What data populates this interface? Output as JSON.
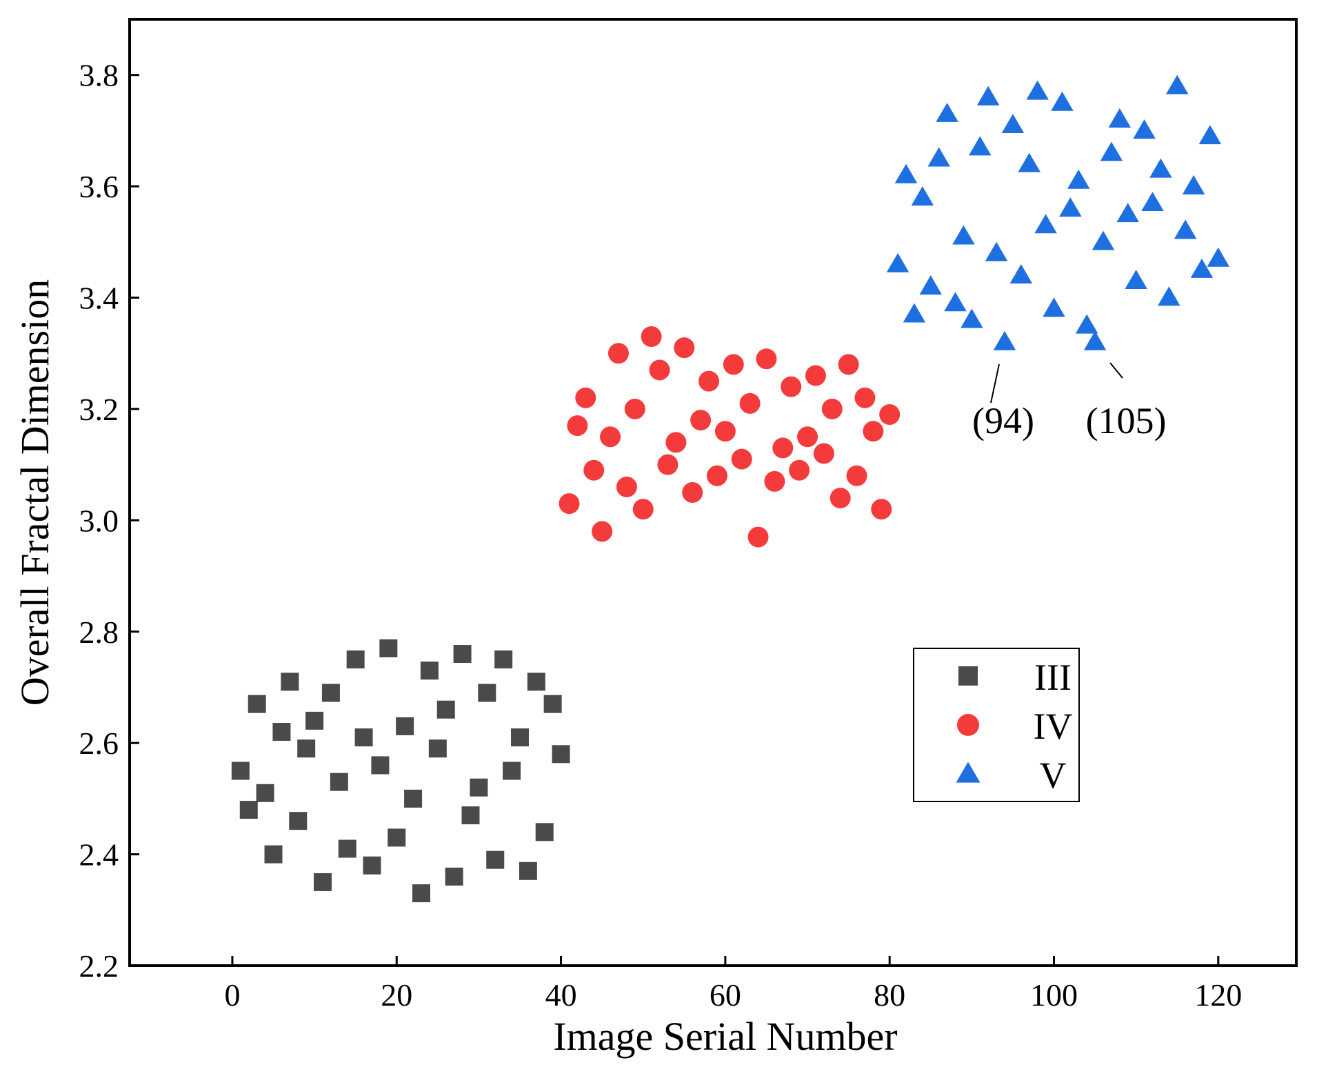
{
  "chart_data": {
    "type": "scatter",
    "title": "",
    "xlabel": "Image Serial Number",
    "ylabel": "Overall Fractal Dimension",
    "xlim": [
      -12.5,
      129.5
    ],
    "ylim": [
      2.2,
      3.9
    ],
    "xticks": [
      "0",
      "20",
      "40",
      "60",
      "80",
      "100",
      "120"
    ],
    "yticks": [
      "2.2",
      "2.4",
      "2.6",
      "2.8",
      "3.0",
      "3.2",
      "3.4",
      "3.6",
      "3.8"
    ],
    "grid": false,
    "legend_position": "bottom-right",
    "series": [
      {
        "name": "III",
        "marker": "square",
        "color": "#4a4a4a",
        "points": [
          [
            1,
            2.55
          ],
          [
            2,
            2.48
          ],
          [
            3,
            2.67
          ],
          [
            4,
            2.51
          ],
          [
            5,
            2.4
          ],
          [
            6,
            2.62
          ],
          [
            7,
            2.71
          ],
          [
            8,
            2.46
          ],
          [
            9,
            2.59
          ],
          [
            10,
            2.64
          ],
          [
            11,
            2.35
          ],
          [
            12,
            2.69
          ],
          [
            13,
            2.53
          ],
          [
            14,
            2.41
          ],
          [
            15,
            2.75
          ],
          [
            16,
            2.61
          ],
          [
            17,
            2.38
          ],
          [
            18,
            2.56
          ],
          [
            19,
            2.77
          ],
          [
            20,
            2.43
          ],
          [
            21,
            2.63
          ],
          [
            22,
            2.5
          ],
          [
            23,
            2.33
          ],
          [
            24,
            2.73
          ],
          [
            25,
            2.59
          ],
          [
            26,
            2.66
          ],
          [
            27,
            2.36
          ],
          [
            28,
            2.76
          ],
          [
            29,
            2.47
          ],
          [
            30,
            2.52
          ],
          [
            31,
            2.69
          ],
          [
            32,
            2.39
          ],
          [
            33,
            2.75
          ],
          [
            34,
            2.55
          ],
          [
            35,
            2.61
          ],
          [
            36,
            2.37
          ],
          [
            37,
            2.71
          ],
          [
            38,
            2.44
          ],
          [
            39,
            2.67
          ],
          [
            40,
            2.58
          ]
        ]
      },
      {
        "name": "IV",
        "marker": "circle",
        "color": "#f43b3b",
        "points": [
          [
            41,
            3.03
          ],
          [
            42,
            3.17
          ],
          [
            43,
            3.22
          ],
          [
            44,
            3.09
          ],
          [
            45,
            2.98
          ],
          [
            46,
            3.15
          ],
          [
            47,
            3.3
          ],
          [
            48,
            3.06
          ],
          [
            49,
            3.2
          ],
          [
            50,
            3.02
          ],
          [
            51,
            3.33
          ],
          [
            52,
            3.27
          ],
          [
            53,
            3.1
          ],
          [
            54,
            3.14
          ],
          [
            55,
            3.31
          ],
          [
            56,
            3.05
          ],
          [
            57,
            3.18
          ],
          [
            58,
            3.25
          ],
          [
            59,
            3.08
          ],
          [
            60,
            3.16
          ],
          [
            61,
            3.28
          ],
          [
            62,
            3.11
          ],
          [
            63,
            3.21
          ],
          [
            64,
            2.97
          ],
          [
            65,
            3.29
          ],
          [
            66,
            3.07
          ],
          [
            67,
            3.13
          ],
          [
            68,
            3.24
          ],
          [
            69,
            3.09
          ],
          [
            70,
            3.15
          ],
          [
            71,
            3.26
          ],
          [
            72,
            3.12
          ],
          [
            73,
            3.2
          ],
          [
            74,
            3.04
          ],
          [
            75,
            3.28
          ],
          [
            76,
            3.08
          ],
          [
            77,
            3.22
          ],
          [
            78,
            3.16
          ],
          [
            79,
            3.02
          ],
          [
            80,
            3.19
          ]
        ]
      },
      {
        "name": "V",
        "marker": "triangle",
        "color": "#1e6fe0",
        "points": [
          [
            81,
            3.46
          ],
          [
            82,
            3.62
          ],
          [
            83,
            3.37
          ],
          [
            84,
            3.58
          ],
          [
            85,
            3.42
          ],
          [
            86,
            3.65
          ],
          [
            87,
            3.73
          ],
          [
            88,
            3.39
          ],
          [
            89,
            3.51
          ],
          [
            90,
            3.36
          ],
          [
            91,
            3.67
          ],
          [
            92,
            3.76
          ],
          [
            93,
            3.48
          ],
          [
            94,
            3.32
          ],
          [
            95,
            3.71
          ],
          [
            96,
            3.44
          ],
          [
            97,
            3.64
          ],
          [
            98,
            3.77
          ],
          [
            99,
            3.53
          ],
          [
            100,
            3.38
          ],
          [
            101,
            3.75
          ],
          [
            102,
            3.56
          ],
          [
            103,
            3.61
          ],
          [
            104,
            3.35
          ],
          [
            105,
            3.32
          ],
          [
            106,
            3.5
          ],
          [
            107,
            3.66
          ],
          [
            108,
            3.72
          ],
          [
            109,
            3.55
          ],
          [
            110,
            3.43
          ],
          [
            111,
            3.7
          ],
          [
            112,
            3.57
          ],
          [
            113,
            3.63
          ],
          [
            114,
            3.4
          ],
          [
            115,
            3.78
          ],
          [
            116,
            3.52
          ],
          [
            117,
            3.6
          ],
          [
            118,
            3.45
          ],
          [
            119,
            3.69
          ],
          [
            120,
            3.47
          ]
        ]
      }
    ],
    "annotations": [
      {
        "text": "(94)",
        "x": 94,
        "y": 3.32
      },
      {
        "text": "(105)",
        "x": 105,
        "y": 3.32
      }
    ]
  }
}
